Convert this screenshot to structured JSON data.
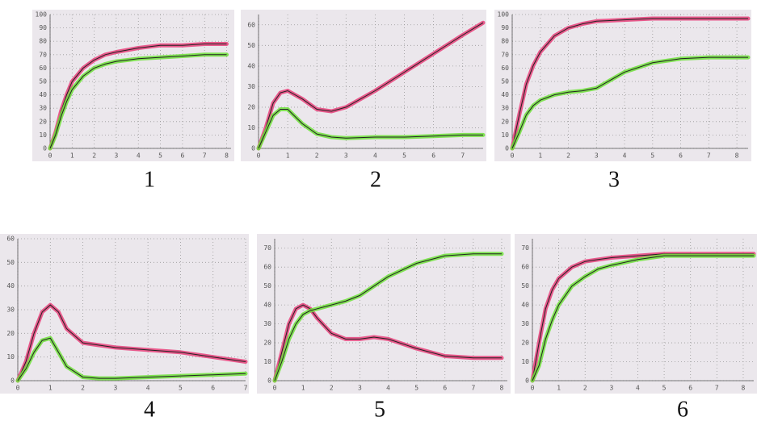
{
  "chart_data": [
    {
      "type": "line",
      "title": "1",
      "x": [
        0,
        0.25,
        0.5,
        0.75,
        1,
        1.5,
        2,
        2.5,
        3,
        4,
        5,
        6,
        7,
        8
      ],
      "series": [
        {
          "color": "#e8407a",
          "values": [
            0,
            12,
            28,
            40,
            50,
            60,
            66,
            70,
            72,
            75,
            77,
            77,
            78,
            78
          ]
        },
        {
          "color": "#6fe03a",
          "values": [
            0,
            10,
            24,
            35,
            44,
            54,
            60,
            63,
            65,
            67,
            68,
            69,
            70,
            70
          ]
        }
      ],
      "xlim": [
        0,
        8.2
      ],
      "xticks": [
        0,
        1,
        2,
        3,
        4,
        5,
        6,
        7,
        8
      ],
      "ylim": [
        0,
        100
      ],
      "yticks": [
        0,
        10,
        20,
        30,
        40,
        50,
        60,
        70,
        80,
        90,
        100
      ],
      "grid": true
    },
    {
      "type": "line",
      "title": "2",
      "x": [
        0,
        0.25,
        0.5,
        0.75,
        1,
        1.5,
        2,
        2.5,
        3,
        4,
        5,
        6,
        7,
        7.7
      ],
      "series": [
        {
          "color": "#e8407a",
          "values": [
            0,
            10,
            22,
            27,
            28,
            24,
            19,
            18,
            20,
            28,
            37,
            46,
            55,
            61
          ]
        },
        {
          "color": "#6fe03a",
          "values": [
            0,
            8,
            16,
            19,
            19,
            12,
            7,
            5.5,
            5,
            5.5,
            5.5,
            6,
            6.5,
            6.5
          ]
        }
      ],
      "xlim": [
        0,
        7.7
      ],
      "xticks": [
        0,
        1,
        2,
        3,
        4,
        5,
        6,
        7
      ],
      "ylim": [
        0,
        65
      ],
      "yticks": [
        0,
        10,
        20,
        30,
        40,
        50,
        60
      ],
      "grid": true
    },
    {
      "type": "line",
      "title": "3",
      "x": [
        0,
        0.25,
        0.5,
        0.75,
        1,
        1.5,
        2,
        2.5,
        3,
        4,
        5,
        6,
        7,
        8.4
      ],
      "series": [
        {
          "color": "#e8407a",
          "values": [
            0,
            25,
            48,
            62,
            72,
            84,
            90,
            93,
            95,
            96,
            97,
            97,
            97,
            97
          ]
        },
        {
          "color": "#6fe03a",
          "values": [
            0,
            12,
            25,
            32,
            36,
            40,
            42,
            43,
            45,
            57,
            64,
            67,
            68,
            68
          ]
        }
      ],
      "xlim": [
        0,
        8.4
      ],
      "xticks": [
        0,
        1,
        2,
        3,
        4,
        5,
        6,
        7,
        8
      ],
      "ylim": [
        0,
        100
      ],
      "yticks": [
        0,
        10,
        20,
        30,
        40,
        50,
        60,
        70,
        80,
        90,
        100
      ],
      "grid": true
    },
    {
      "type": "line",
      "title": "4",
      "x": [
        0,
        0.25,
        0.5,
        0.75,
        1,
        1.25,
        1.5,
        2,
        2.5,
        3,
        4,
        5,
        6,
        7
      ],
      "series": [
        {
          "color": "#e8407a",
          "values": [
            0,
            8,
            20,
            29,
            32,
            29,
            22,
            16,
            15,
            14,
            13,
            12,
            10,
            8
          ]
        },
        {
          "color": "#6fe03a",
          "values": [
            0,
            5,
            12,
            17,
            18,
            12,
            6,
            1.5,
            1,
            1,
            1.5,
            2,
            2.5,
            3
          ]
        }
      ],
      "xlim": [
        0,
        7
      ],
      "xticks": [
        0,
        1,
        2,
        3,
        4,
        5,
        6,
        7
      ],
      "ylim": [
        0,
        60
      ],
      "yticks": [
        0,
        10,
        20,
        30,
        40,
        50,
        60
      ],
      "grid": true
    },
    {
      "type": "line",
      "title": "5",
      "x": [
        0,
        0.25,
        0.5,
        0.75,
        1,
        1.25,
        1.5,
        2,
        2.5,
        3,
        3.5,
        4,
        5,
        6,
        7,
        8
      ],
      "series": [
        {
          "color": "#e8407a",
          "values": [
            0,
            15,
            30,
            38,
            40,
            38,
            33,
            25,
            22,
            22,
            23,
            22,
            17,
            13,
            12,
            12
          ]
        },
        {
          "color": "#6fe03a",
          "values": [
            0,
            10,
            22,
            30,
            35,
            37,
            38,
            40,
            42,
            45,
            50,
            55,
            62,
            66,
            67,
            67
          ]
        }
      ],
      "xlim": [
        0,
        8.2
      ],
      "xticks": [
        0,
        1,
        2,
        3,
        4,
        5,
        6,
        7,
        8
      ],
      "ylim": [
        0,
        75
      ],
      "yticks": [
        0,
        10,
        20,
        30,
        40,
        50,
        60,
        70
      ],
      "grid": true
    },
    {
      "type": "line",
      "title": "6",
      "x": [
        0,
        0.25,
        0.5,
        0.75,
        1,
        1.5,
        2,
        2.5,
        3,
        4,
        5,
        6,
        7,
        8.4
      ],
      "series": [
        {
          "color": "#e8407a",
          "values": [
            0,
            20,
            38,
            48,
            54,
            60,
            63,
            64,
            65,
            66,
            67,
            67,
            67,
            67
          ]
        },
        {
          "color": "#6fe03a",
          "values": [
            0,
            8,
            22,
            32,
            40,
            50,
            55,
            59,
            61,
            64,
            66,
            66,
            66,
            66
          ]
        }
      ],
      "xlim": [
        0,
        8.4
      ],
      "xticks": [
        0,
        1,
        2,
        3,
        4,
        5,
        6,
        7,
        8
      ],
      "ylim": [
        0,
        75
      ],
      "yticks": [
        0,
        10,
        20,
        30,
        40,
        50,
        60,
        70
      ],
      "grid": true
    }
  ]
}
